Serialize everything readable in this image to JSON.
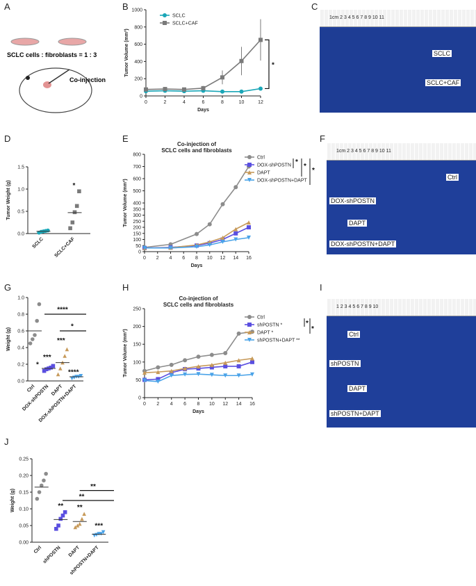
{
  "panel_letters": [
    "A",
    "B",
    "C",
    "D",
    "E",
    "F",
    "G",
    "H",
    "I",
    "J"
  ],
  "schematic": {
    "ratio_text": "SCLC cells : fibroblasts = 1 : 3",
    "injection_label": "Co-injection"
  },
  "photos": {
    "C": {
      "labels": [
        "SCLC",
        "SCLC+CAF"
      ],
      "ruler_text": "1cm 2 3 4 5 6 7 8 9 10 11"
    },
    "F": {
      "labels": [
        "Ctrl",
        "DOX-shPOSTN",
        "DAPT",
        "DOX-shPOSTN+DAPT"
      ],
      "ruler_text": "1cm 2 3 4 5 6 7 8 9 10 11"
    },
    "I": {
      "labels": [
        "Ctrl",
        "shPOSTN",
        "DAPT",
        "shPOSTN+DAPT"
      ],
      "ruler_text": "1 2 3 4 5 6 7 8 9 10"
    }
  },
  "chart_data": [
    {
      "id": "B",
      "type": "line",
      "title": "",
      "xlabel": "Days",
      "ylabel": "Tumor Volume (mm³)",
      "x": [
        0,
        2,
        4,
        6,
        8,
        10,
        12
      ],
      "xticks": [
        "0",
        "2",
        "4",
        "6",
        "8",
        "10",
        "12"
      ],
      "yticks": [
        "0",
        "200",
        "400",
        "600",
        "800",
        "1000"
      ],
      "ylim": [
        0,
        1000
      ],
      "series": [
        {
          "name": "SCLC",
          "color": "#1aa6b7",
          "marker": "circle",
          "values": [
            55,
            60,
            55,
            60,
            50,
            50,
            85
          ]
        },
        {
          "name": "SCLC+CAF",
          "color": "#7a7a7a",
          "marker": "square",
          "values": [
            75,
            80,
            75,
            90,
            215,
            405,
            650
          ],
          "err": [
            15,
            15,
            15,
            25,
            80,
            165,
            240
          ]
        }
      ],
      "significance": "*"
    },
    {
      "id": "D",
      "type": "scatter",
      "title": "",
      "xlabel": "",
      "ylabel": "Tumor Weight (g)",
      "categories": [
        "SCLC",
        "SCLC+CAF"
      ],
      "yticks": [
        "0.0",
        "0.5",
        "1.0",
        "1.5"
      ],
      "ylim": [
        0,
        1.5
      ],
      "series": [
        {
          "name": "SCLC",
          "color": "#1aa6b7",
          "points": [
            0.02,
            0.04,
            0.05,
            0.06,
            0.07
          ],
          "mean": 0.05
        },
        {
          "name": "SCLC+CAF",
          "color": "#7a7a7a",
          "points": [
            0.12,
            0.25,
            0.48,
            0.62,
            0.95
          ],
          "mean": 0.47
        }
      ],
      "significance": "*"
    },
    {
      "id": "E",
      "type": "line",
      "title": "Co-injection of SCLC cells and fibroblasts",
      "title_lines": [
        "Co-injection of",
        "SCLC cells and fibroblasts"
      ],
      "xlabel": "Days",
      "ylabel": "Tumor Volume (mm³)",
      "x": [
        0,
        4,
        8,
        10,
        12,
        14,
        16
      ],
      "xticks": [
        "0",
        "2",
        "4",
        "6",
        "8",
        "10",
        "12",
        "14",
        "16"
      ],
      "yticks": [
        "0",
        "50",
        "100",
        "150",
        "200",
        "250",
        "300",
        "350",
        "400",
        "500",
        "600",
        "700",
        "800"
      ],
      "ylim": [
        0,
        800
      ],
      "series": [
        {
          "name": "Ctrl",
          "color": "#8c8c8c",
          "marker": "circle",
          "values": [
            35,
            60,
            145,
            225,
            390,
            530,
            700
          ]
        },
        {
          "name": "DOX-shPOSTN",
          "color": "#5a4fe0",
          "marker": "square",
          "values": [
            30,
            35,
            50,
            70,
            100,
            150,
            200
          ]
        },
        {
          "name": "DAPT",
          "color": "#c79a5a",
          "marker": "triangle-up",
          "values": [
            30,
            32,
            55,
            80,
            115,
            185,
            240
          ]
        },
        {
          "name": "DOX-shPOSTN+DAPT",
          "color": "#4aa3e8",
          "marker": "triangle-down",
          "values": [
            30,
            30,
            40,
            55,
            80,
            100,
            115
          ]
        }
      ],
      "significance": [
        "*",
        "*",
        "*"
      ]
    },
    {
      "id": "G",
      "type": "scatter",
      "xlabel": "",
      "ylabel": "Weight (g)",
      "categories": [
        "Ctrl",
        "DOX-shPOSTN",
        "DAPT",
        "DOX-shPOSTN+DAPT"
      ],
      "yticks": [
        "0.0",
        "0.2",
        "0.4",
        "0.6",
        "0.8",
        "1.0"
      ],
      "ylim": [
        0,
        1.0
      ],
      "series": [
        {
          "name": "Ctrl",
          "color": "#8c8c8c",
          "points": [
            0.45,
            0.5,
            0.55,
            0.72,
            0.92
          ],
          "mean": 0.6
        },
        {
          "name": "DOX-shPOSTN",
          "color": "#5a4fe0",
          "points": [
            0.12,
            0.14,
            0.15,
            0.16,
            0.18
          ],
          "mean": 0.15
        },
        {
          "name": "DAPT",
          "color": "#c79a5a",
          "points": [
            0.08,
            0.15,
            0.22,
            0.3,
            0.38
          ],
          "mean": 0.22
        },
        {
          "name": "DOX-shPOSTN+DAPT",
          "color": "#4aa3e8",
          "points": [
            0.03,
            0.04,
            0.05,
            0.05,
            0.06
          ],
          "mean": 0.05
        }
      ],
      "significance": {
        "above_groups": [
          "***",
          "***",
          ""
        ],
        "group_star": "*",
        "brackets": [
          "****",
          "*"
        ],
        "last": "****"
      }
    },
    {
      "id": "H",
      "type": "line",
      "title": "Co-injection of SCLC cells and fibroblasts",
      "title_lines": [
        "Co-injection of",
        "SCLC cells and fibroblasts"
      ],
      "xlabel": "Days",
      "ylabel": "Tumor Volume (mm³)",
      "x": [
        0,
        2,
        4,
        6,
        8,
        10,
        12,
        14,
        16
      ],
      "xticks": [
        "0",
        "2",
        "4",
        "6",
        "8",
        "10",
        "12",
        "14",
        "16"
      ],
      "yticks": [
        "0",
        "50",
        "100",
        "150",
        "200",
        "250"
      ],
      "ylim": [
        0,
        250
      ],
      "series": [
        {
          "name": "Ctrl",
          "color": "#8c8c8c",
          "marker": "circle",
          "values": [
            75,
            85,
            92,
            105,
            115,
            120,
            125,
            180,
            185
          ]
        },
        {
          "name": "shPOSTN",
          "color": "#5a4fe0",
          "marker": "square",
          "values": [
            50,
            52,
            70,
            80,
            82,
            85,
            88,
            88,
            100
          ]
        },
        {
          "name": "DAPT",
          "color": "#c79a5a",
          "marker": "triangle-up",
          "values": [
            70,
            72,
            75,
            82,
            88,
            92,
            98,
            105,
            110
          ]
        },
        {
          "name": "shPOSTN+DAPT",
          "color": "#4aa3e8",
          "marker": "triangle-down",
          "values": [
            48,
            45,
            62,
            65,
            66,
            64,
            62,
            62,
            65
          ]
        }
      ],
      "legend_marks": [
        "",
        "*",
        "*",
        "**"
      ],
      "significance": [
        "*",
        "*"
      ]
    },
    {
      "id": "J",
      "type": "scatter",
      "xlabel": "",
      "ylabel": "Weight (g)",
      "categories": [
        "Ctrl",
        "shPOSTN",
        "DAPT",
        "shPOSTN+DAPT"
      ],
      "yticks": [
        "0.00",
        "0.05",
        "0.10",
        "0.15",
        "0.20",
        "0.25"
      ],
      "ylim": [
        0,
        0.25
      ],
      "series": [
        {
          "name": "Ctrl",
          "color": "#8c8c8c",
          "points": [
            0.13,
            0.15,
            0.17,
            0.185,
            0.205
          ],
          "mean": 0.165
        },
        {
          "name": "shPOSTN",
          "color": "#5a4fe0",
          "points": [
            0.04,
            0.05,
            0.07,
            0.08,
            0.09
          ],
          "mean": 0.068
        },
        {
          "name": "DAPT",
          "color": "#c79a5a",
          "points": [
            0.045,
            0.05,
            0.055,
            0.07,
            0.085
          ],
          "mean": 0.062
        },
        {
          "name": "shPOSTN+DAPT",
          "color": "#4aa3e8",
          "points": [
            0.02,
            0.022,
            0.025,
            0.025,
            0.03
          ],
          "mean": 0.024
        }
      ],
      "significance": {
        "above_groups": [
          "**",
          "**",
          "***"
        ],
        "brackets": [
          "**",
          "**"
        ]
      }
    }
  ]
}
